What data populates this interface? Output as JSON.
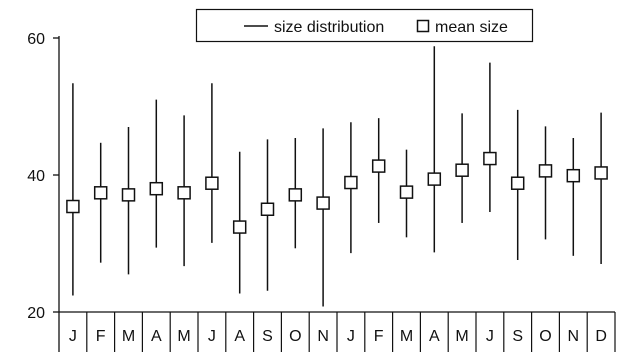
{
  "chart_data": {
    "type": "scatter",
    "title": "",
    "xlabel": "",
    "ylabel": "",
    "categories": [
      "J",
      "F",
      "M",
      "A",
      "M",
      "J",
      "A",
      "S",
      "O",
      "N",
      "J",
      "F",
      "M",
      "A",
      "M",
      "J",
      "S",
      "O",
      "N",
      "D"
    ],
    "ylim": [
      20,
      60
    ],
    "yticks": [
      20,
      40,
      60
    ],
    "grid": false,
    "legend": {
      "placement": "top-center",
      "entries": [
        {
          "label": "size distribution",
          "marker": "line"
        },
        {
          "label": "mean size",
          "marker": "square"
        }
      ]
    },
    "series": [
      {
        "name": "mean size",
        "values": [
          35.4,
          37.4,
          37.1,
          38.0,
          37.4,
          38.8,
          32.4,
          35.0,
          37.1,
          35.9,
          38.9,
          41.3,
          37.5,
          39.4,
          40.7,
          42.4,
          38.8,
          40.6,
          39.9,
          40.3
        ]
      },
      {
        "name": "size distribution",
        "low": [
          22.4,
          27.2,
          25.5,
          29.4,
          26.7,
          30.1,
          22.7,
          23.1,
          29.3,
          20.8,
          28.6,
          33.0,
          30.9,
          28.7,
          33.0,
          34.6,
          27.6,
          30.6,
          28.2,
          27.0
        ],
        "high": [
          53.4,
          44.7,
          47.0,
          51.0,
          48.7,
          53.4,
          43.4,
          45.2,
          45.4,
          46.8,
          47.7,
          48.3,
          43.7,
          58.8,
          49.0,
          56.4,
          49.5,
          47.1,
          45.4,
          49.1
        ]
      }
    ]
  }
}
